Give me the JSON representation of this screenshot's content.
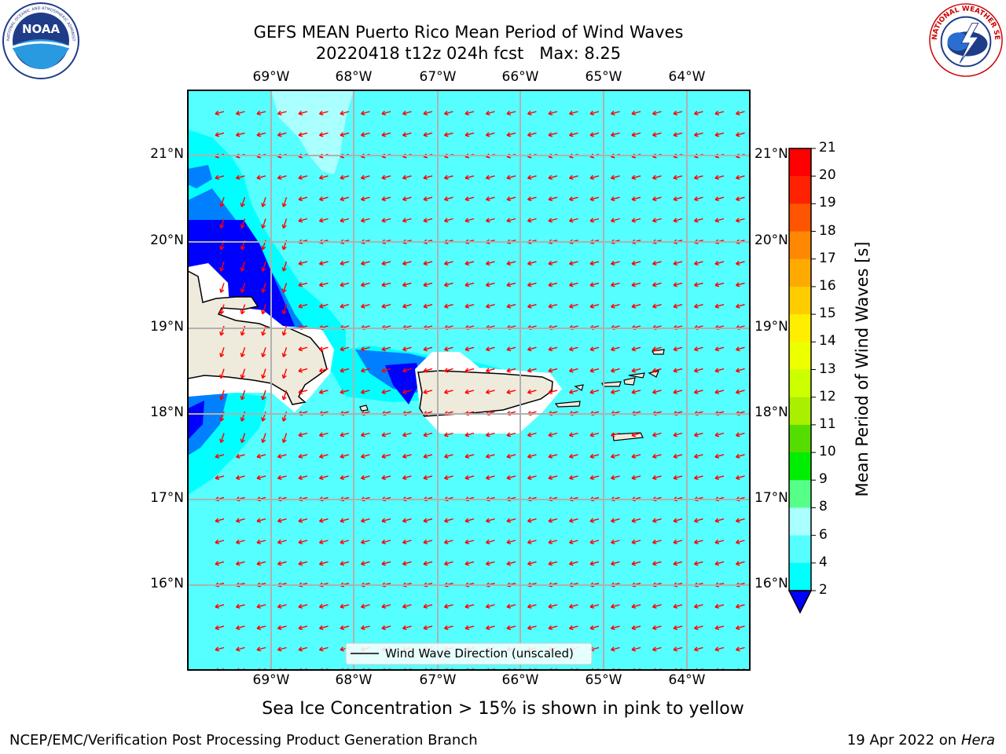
{
  "title": {
    "line1": "GEFS MEAN Puerto Rico Mean Period of Wind Waves",
    "line2": "20220418 t12z 024h fcst   Max: 8.25"
  },
  "map": {
    "lon_labels": [
      "69°W",
      "68°W",
      "67°W",
      "66°W",
      "65°W",
      "64°W"
    ],
    "lat_labels": [
      "21°N",
      "20°N",
      "19°N",
      "18°N",
      "17°N",
      "16°N"
    ],
    "field_colors": {
      "ocean_6_8": "#55ffff",
      "ocean_4_6": "#00ffff",
      "ocean_8_9": "#aaffff",
      "ocean_2_4": "#0080ff",
      "ocean_lt2": "#0000ff",
      "land": "#efebdc",
      "missing": "#ffffff",
      "arrow": "#ff0000"
    },
    "wind_wave_direction": "from east-northeast (arrows point west-southwest)",
    "legend_label": "Wind Wave Direction (unscaled)"
  },
  "colorbar": {
    "title": "Mean Period of Wind Waves [s]",
    "ticks": [
      "2",
      "4",
      "6",
      "8",
      "9",
      "10",
      "11",
      "12",
      "13",
      "14",
      "15",
      "16",
      "17",
      "18",
      "19",
      "20",
      "21"
    ],
    "colors": [
      "#0080ff",
      "#00ffff",
      "#55ffff",
      "#aaffff",
      "#55ff88",
      "#00ee00",
      "#55dd00",
      "#aaee00",
      "#ccff00",
      "#eeff00",
      "#ffee00",
      "#ffcc00",
      "#ffaa00",
      "#ff8800",
      "#ff5500",
      "#ff2200",
      "#ff0000"
    ],
    "under_color": "#0000ff"
  },
  "logos": {
    "noaa_text": "NOAA",
    "noaa_ring": "NATIONAL OCEANIC AND ATMOSPHERIC ADMINISTRATION · U.S. DEPARTMENT OF COMMERCE",
    "nws_ring": "NATIONAL WEATHER SERVICE"
  },
  "subtitle": "Sea Ice Concentration > 15% is shown in pink to yellow",
  "footer": {
    "left": "NCEP/EMC/Verification Post Processing Product Generation Branch",
    "date": "19 Apr 2022 on ",
    "host": "Hera"
  }
}
